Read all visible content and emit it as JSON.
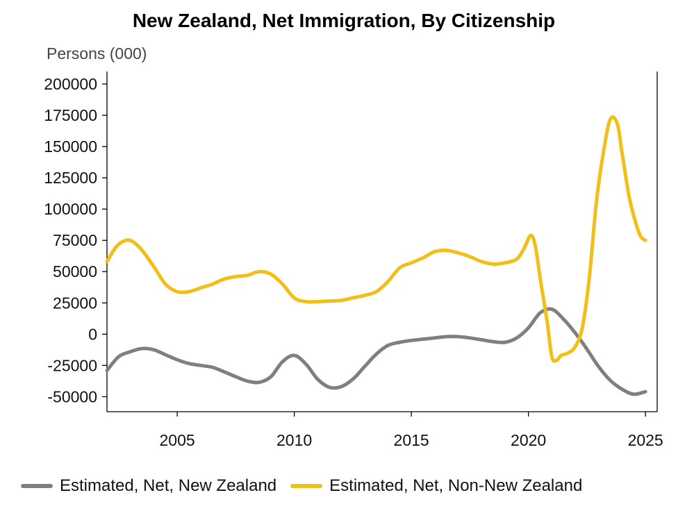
{
  "chart_data": {
    "type": "line",
    "title": "New Zealand, Net Immigration, By Citizenship",
    "ylabel": "Persons (000)",
    "xlabel": "",
    "xlim": [
      2002.0,
      2025.5
    ],
    "ylim": [
      -62000,
      210000
    ],
    "yticks": [
      200000,
      175000,
      150000,
      125000,
      100000,
      75000,
      50000,
      25000,
      0,
      -25000,
      -50000
    ],
    "ytick_labels": [
      "200000",
      "175000",
      "150000",
      "125000",
      "100000",
      "75000",
      "50000",
      "25000",
      "0",
      "-25000",
      "-50000"
    ],
    "xticks": [
      2005,
      2010,
      2015,
      2020,
      2025
    ],
    "xtick_labels": [
      "2005",
      "2010",
      "2015",
      "2020",
      "2025"
    ],
    "grid": false,
    "legend_position": "bottom",
    "series": [
      {
        "name": "Estimated, Net, New Zealand",
        "color": "#7f7f7f",
        "x": [
          2002.0,
          2002.5,
          2003.0,
          2003.5,
          2004.0,
          2004.5,
          2005.0,
          2005.5,
          2006.0,
          2006.5,
          2007.0,
          2007.5,
          2008.0,
          2008.5,
          2009.0,
          2009.5,
          2010.0,
          2010.5,
          2011.0,
          2011.5,
          2012.0,
          2012.5,
          2013.0,
          2013.5,
          2014.0,
          2014.5,
          2015.0,
          2015.5,
          2016.0,
          2016.5,
          2017.0,
          2017.5,
          2018.0,
          2018.5,
          2019.0,
          2019.5,
          2020.0,
          2020.5,
          2021.0,
          2021.5,
          2022.0,
          2022.5,
          2023.0,
          2023.5,
          2024.0,
          2024.5,
          2025.0
        ],
        "values": [
          -29000,
          -18000,
          -14000,
          -11500,
          -12500,
          -16500,
          -20500,
          -23500,
          -25000,
          -26500,
          -30000,
          -34000,
          -37500,
          -38500,
          -34000,
          -22000,
          -17000,
          -24000,
          -36000,
          -42500,
          -42000,
          -36000,
          -26000,
          -16000,
          -9000,
          -6500,
          -5000,
          -4000,
          -3000,
          -2000,
          -2000,
          -3000,
          -4500,
          -6000,
          -6500,
          -3000,
          5000,
          17000,
          20000,
          12000,
          1000,
          -12000,
          -26000,
          -37000,
          -44000,
          -48000,
          -46000
        ]
      },
      {
        "name": "Estimated, Net, Non-New Zealand",
        "color": "#f2be18",
        "x": [
          2002.0,
          2002.4,
          2002.8,
          2003.1,
          2003.5,
          2004.0,
          2004.5,
          2005.0,
          2005.5,
          2006.0,
          2006.5,
          2007.0,
          2007.5,
          2008.0,
          2008.5,
          2009.0,
          2009.5,
          2010.0,
          2010.5,
          2011.0,
          2011.5,
          2012.0,
          2012.5,
          2013.0,
          2013.5,
          2014.0,
          2014.5,
          2015.0,
          2015.5,
          2016.0,
          2016.5,
          2017.0,
          2017.5,
          2018.0,
          2018.5,
          2019.0,
          2019.5,
          2019.8,
          2020.1,
          2020.3,
          2020.5,
          2020.8,
          2021.0,
          2021.2,
          2021.4,
          2021.7,
          2022.0,
          2022.3,
          2022.6,
          2022.9,
          2023.2,
          2023.5,
          2023.8,
          2024.0,
          2024.3,
          2024.6,
          2024.8,
          2025.0
        ],
        "values": [
          58000,
          70000,
          75000,
          74000,
          67000,
          54000,
          40000,
          34000,
          34000,
          37000,
          40000,
          44000,
          46000,
          47000,
          50000,
          48000,
          40000,
          29000,
          26000,
          26000,
          26500,
          27000,
          29000,
          31000,
          34000,
          42000,
          53000,
          57000,
          61000,
          66000,
          67000,
          65000,
          62000,
          58000,
          56000,
          57000,
          60000,
          68000,
          79000,
          70000,
          45000,
          10000,
          -18000,
          -21000,
          -17000,
          -15000,
          -10000,
          5000,
          45000,
          105000,
          145000,
          172000,
          168000,
          145000,
          110000,
          88000,
          78000,
          75000
        ]
      }
    ]
  }
}
